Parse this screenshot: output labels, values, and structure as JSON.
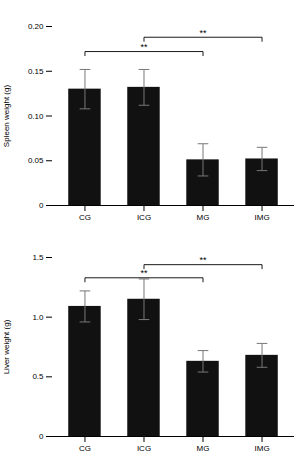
{
  "chart_data": [
    {
      "type": "bar",
      "categories": [
        "CG",
        "ICG",
        "MG",
        "IMG"
      ],
      "values": [
        0.13,
        0.132,
        0.051,
        0.052
      ],
      "errors": [
        0.022,
        0.02,
        0.018,
        0.013
      ],
      "ylabel": "Spleen weight (g)",
      "ylim": [
        0,
        0.2
      ],
      "yticks": [
        0,
        0.05,
        {
          "value": 0.1,
          "label": "0.10"
        },
        0.15,
        {
          "value": 0.2,
          "label": "0.20"
        }
      ],
      "color": "#111111",
      "grid": false,
      "annotations": [
        {
          "text": "**",
          "x1": "CG",
          "x2": "MG",
          "y": 0.172
        },
        {
          "text": "**",
          "x1": "ICG",
          "x2": "IMG",
          "y": 0.188
        }
      ]
    },
    {
      "type": "bar",
      "categories": [
        "CG",
        "ICG",
        "MG",
        "IMG"
      ],
      "values": [
        1.09,
        1.15,
        0.63,
        0.68
      ],
      "errors": [
        0.13,
        0.17,
        0.09,
        0.1
      ],
      "ylabel": "Liver weight (g)",
      "ylim": [
        0,
        1.5
      ],
      "yticks": [
        0,
        0.5,
        {
          "value": 1.0,
          "label": "1.0"
        },
        1.5
      ],
      "color": "#111111",
      "grid": false,
      "annotations": [
        {
          "text": "**",
          "x1": "CG",
          "x2": "MG",
          "y": 1.33
        },
        {
          "text": "**",
          "x1": "ICG",
          "x2": "IMG",
          "y": 1.44
        }
      ]
    }
  ]
}
